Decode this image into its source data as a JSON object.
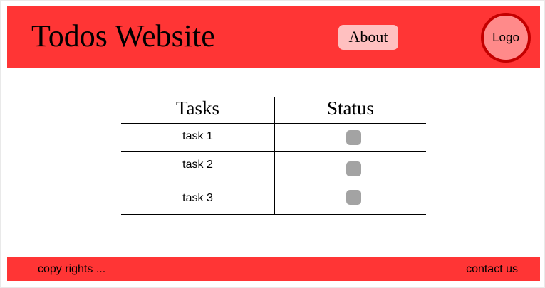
{
  "header": {
    "title": "Todos Website",
    "about_label": "About",
    "logo_label": "Logo"
  },
  "table": {
    "headers": [
      "Tasks",
      "Status"
    ],
    "rows": [
      {
        "task": "task 1",
        "status": "unchecked"
      },
      {
        "task": "task 2",
        "status": "unchecked"
      },
      {
        "task": "task 3",
        "status": "unchecked"
      }
    ]
  },
  "footer": {
    "copyright": "copy rights ...",
    "contact": "contact us"
  },
  "colors": {
    "brand_red": "#ff3535",
    "about_bg": "#ffc0c0",
    "logo_bg": "#ff8a8a",
    "logo_border": "#c40000",
    "checkbox": "#a3a3a3"
  }
}
